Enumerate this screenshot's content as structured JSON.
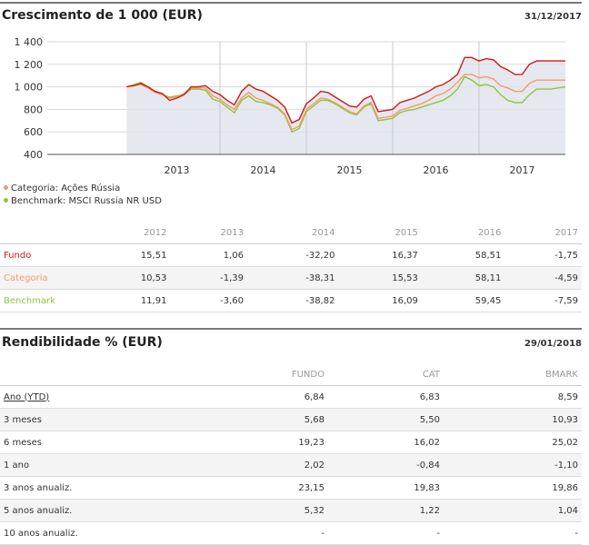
{
  "growth": {
    "title": "Crescimento de 1 000 (EUR)",
    "date": "31/12/2017"
  },
  "chart_data": {
    "type": "line",
    "title": "Crescimento de 1 000 (EUR)",
    "ylim": [
      400,
      1400
    ],
    "yticks": [
      "1 400",
      "1 200",
      "1 000",
      "800",
      "600",
      "400"
    ],
    "ytick_values": [
      1400,
      1200,
      1000,
      800,
      600,
      400
    ],
    "xtick_labels": [
      "2013",
      "2014",
      "2015",
      "2016",
      "2017"
    ],
    "x_domain": [
      2012.0,
      2018.0
    ],
    "x_gridlines": [
      2014.0,
      2015.0,
      2016.0,
      2017.0
    ],
    "x_label_positions": [
      2013.5,
      2014.5,
      2015.5,
      2016.5,
      2017.5
    ],
    "grid": true,
    "legend_position": "bottom-left",
    "colors": {
      "fundo": "#cc1a1a",
      "categoria": "#f59b6b",
      "benchmark": "#8cc63f",
      "area": "#dfe2ea"
    },
    "x": [
      2012.92,
      2013.0,
      2013.083,
      2013.167,
      2013.25,
      2013.333,
      2013.417,
      2013.5,
      2013.583,
      2013.667,
      2013.75,
      2013.833,
      2013.917,
      2014.0,
      2014.083,
      2014.167,
      2014.25,
      2014.333,
      2014.417,
      2014.5,
      2014.583,
      2014.667,
      2014.75,
      2014.833,
      2014.917,
      2015.0,
      2015.083,
      2015.167,
      2015.25,
      2015.333,
      2015.417,
      2015.5,
      2015.583,
      2015.667,
      2015.75,
      2015.833,
      2015.917,
      2016.0,
      2016.083,
      2016.167,
      2016.25,
      2016.333,
      2016.417,
      2016.5,
      2016.583,
      2016.667,
      2016.75,
      2016.833,
      2016.917,
      2017.0,
      2017.083,
      2017.167,
      2017.25,
      2017.333,
      2017.417,
      2017.5,
      2017.583,
      2017.667,
      2017.75,
      2017.833,
      2017.917,
      2018.0
    ],
    "series": [
      {
        "name": "Fundo",
        "values": [
          1000,
          1010,
          1030,
          1000,
          960,
          940,
          880,
          900,
          930,
          1000,
          1000,
          1010,
          960,
          930,
          880,
          840,
          960,
          1020,
          980,
          960,
          920,
          880,
          820,
          680,
          710,
          850,
          900,
          960,
          950,
          910,
          870,
          830,
          820,
          890,
          920,
          780,
          790,
          800,
          860,
          880,
          900,
          930,
          960,
          1000,
          1020,
          1060,
          1110,
          1260,
          1260,
          1230,
          1250,
          1240,
          1180,
          1150,
          1110,
          1110,
          1200,
          1230,
          1230,
          1230,
          1230,
          1230
        ]
      },
      {
        "name": "Categoria",
        "values": [
          1000,
          1010,
          1020,
          990,
          950,
          930,
          900,
          910,
          940,
          990,
          990,
          990,
          920,
          890,
          840,
          800,
          900,
          950,
          900,
          880,
          850,
          820,
          760,
          620,
          650,
          800,
          850,
          900,
          890,
          860,
          820,
          780,
          760,
          830,
          860,
          720,
          730,
          740,
          790,
          810,
          830,
          850,
          880,
          920,
          940,
          980,
          1040,
          1110,
          1110,
          1080,
          1090,
          1070,
          1010,
          990,
          960,
          960,
          1030,
          1060,
          1060,
          1060,
          1060,
          1060
        ]
      },
      {
        "name": "Benchmark",
        "values": [
          1000,
          1020,
          1040,
          1000,
          950,
          930,
          910,
          920,
          930,
          980,
          980,
          970,
          890,
          870,
          820,
          770,
          880,
          920,
          870,
          860,
          840,
          810,
          750,
          600,
          630,
          780,
          830,
          880,
          880,
          850,
          810,
          770,
          750,
          820,
          850,
          700,
          710,
          720,
          770,
          790,
          800,
          820,
          840,
          860,
          880,
          920,
          980,
          1090,
          1060,
          1010,
          1020,
          1000,
          930,
          880,
          860,
          860,
          930,
          980,
          980,
          980,
          990,
          1000
        ]
      }
    ]
  },
  "legend": [
    {
      "label": "Categoria: Ações Rússia",
      "color": "#f59b6b"
    },
    {
      "label": "Benchmark: MSCI Russia NR USD",
      "color": "#8cc63f"
    }
  ],
  "perf_table": {
    "headers": [
      "2012",
      "2013",
      "2014",
      "2015",
      "2016",
      "2017"
    ],
    "rows": [
      {
        "label": "Fundo",
        "color": "#cc1a1a",
        "values": [
          "15,51",
          "1,06",
          "-32,20",
          "16,37",
          "58,51",
          "-1,75"
        ]
      },
      {
        "label": "Categoria",
        "color": "#f59b6b",
        "values": [
          "10,53",
          "-1,39",
          "-38,31",
          "15,53",
          "58,11",
          "-4,59"
        ]
      },
      {
        "label": "Benchmark",
        "color": "#8cc63f",
        "values": [
          "11,91",
          "-3,60",
          "-38,82",
          "16,09",
          "59,45",
          "-7,59"
        ]
      }
    ]
  },
  "returns": {
    "title": "Rendibilidade % (EUR)",
    "date": "29/01/2018",
    "headers": [
      "FUNDO",
      "CAT",
      "BMARK"
    ],
    "rows": [
      {
        "label": "Ano (YTD)",
        "values": [
          "6,84",
          "6,83",
          "8,59"
        ]
      },
      {
        "label": "3 meses",
        "values": [
          "5,68",
          "5,50",
          "10,93"
        ]
      },
      {
        "label": "6 meses",
        "values": [
          "19,23",
          "16,02",
          "25,02"
        ]
      },
      {
        "label": "1 ano",
        "values": [
          "2,02",
          "-0,84",
          "-1,10"
        ]
      },
      {
        "label": "3 anos anualiz.",
        "values": [
          "23,15",
          "19,83",
          "19,86"
        ]
      },
      {
        "label": "5 anos anualiz.",
        "values": [
          "5,32",
          "1,22",
          "1,04"
        ]
      },
      {
        "label": "10 anos anualiz.",
        "values": [
          "-",
          "-",
          "-"
        ]
      }
    ]
  }
}
